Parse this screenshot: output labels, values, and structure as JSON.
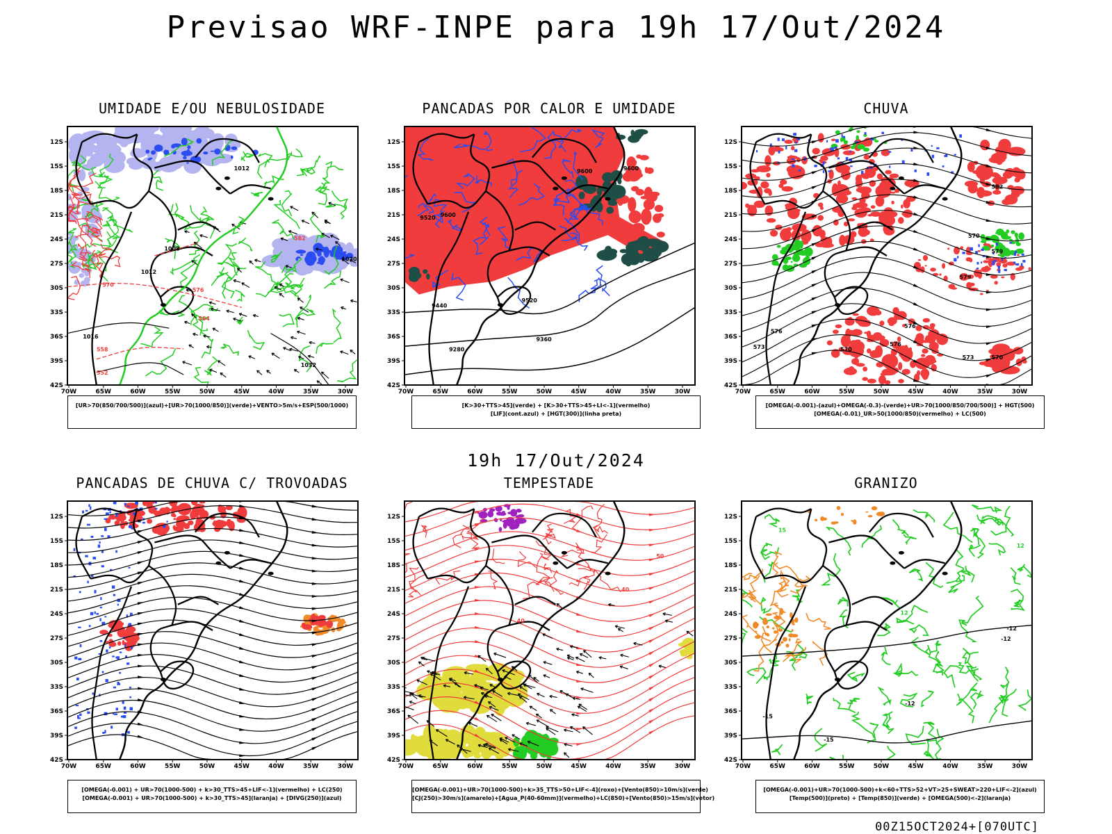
{
  "title": "Previsao WRF-INPE  para 19h 17/Out/2024",
  "mid_title": "19h 17/Out/2024",
  "footer": "00Z15OCT2024+[070UTC]",
  "axes": {
    "lat_labels": [
      "12S",
      "15S",
      "18S",
      "21S",
      "24S",
      "27S",
      "30S",
      "33S",
      "36S",
      "39S",
      "42S"
    ],
    "lon_labels": [
      "70W",
      "65W",
      "60W",
      "55W",
      "50W",
      "45W",
      "40W",
      "35W",
      "30W"
    ]
  },
  "colors": {
    "red": "#f03c3c",
    "green": "#22cc22",
    "blue": "#2a4cf0",
    "lavender": "#b4b4f0",
    "darkgreen": "#1e4e46",
    "yellow": "#e0dc3c",
    "orange": "#f08a28",
    "purple": "#a020c0",
    "black": "#000000"
  },
  "panels": [
    {
      "id": "umidade",
      "title": "UMIDADE E/OU NEBULOSIDADE",
      "legend": [
        "[UR>70(850/700/500)](azul)+[UR>70(1000/850)](verde)+VENTO>5m/s+ESP(500/1000)"
      ],
      "contour_labels": [
        "1008",
        "1012",
        "1016",
        "1020",
        "1032",
        "570",
        "576",
        "564",
        "582",
        "558",
        "552",
        "1012"
      ]
    },
    {
      "id": "pancadas",
      "title": "PANCADAS POR CALOR E UMIDADE",
      "legend": [
        "[K>30+TTS>45](verde) + [K>30+TTS>45+LI<-1](vermelho)",
        "[LIF](cont.azul) + [HGT(300)](linha preta)"
      ],
      "contour_labels": [
        "9600",
        "9520",
        "9440",
        "9360",
        "9280",
        "9600",
        "9520",
        "9600"
      ]
    },
    {
      "id": "chuva",
      "title": "CHUVA",
      "legend": [
        "[OMEGA(-0.001)-(azul)+OMEGA(-0.3)-(verde)+UR>70(1000/850/700/500)] + HGT(500)",
        "[OMEGA(-0.01)_UR>50(1000/850)(vermelho) + LC(500)"
      ],
      "contour_labels": [
        "582",
        "576",
        "570",
        "573",
        "576",
        "570",
        "579",
        "579",
        "576",
        "573",
        "570"
      ]
    },
    {
      "id": "trovoadas",
      "title": "PANCADAS DE CHUVA C/ TROVOADAS",
      "legend": [
        "[OMEGA(-0.001) + UR>70(1000-500) + k>30_TTS>45+LIF<-1](vermelho) + LC(250)",
        "[OMEGA(-0.001) + UR>70(1000-500) + k>30_TTS>45](laranja) + [DIVG(250)](azul)"
      ],
      "contour_labels": []
    },
    {
      "id": "tempestade",
      "title": "TEMPESTADE",
      "legend": [
        "[OMEGA(-0.001)+UR>70(1000-500)+k>35_TTS>50+LIF<-4](roxo)+[Vento(850)>10m/s](verde)",
        "[CJ(250)>30m/s](amarelo)+[Agua_P(40-60mm)](vermelho)+LC(850)+[Vento(850)>15m/s](vetor)"
      ],
      "contour_labels": [
        "40",
        "50",
        "40"
      ]
    },
    {
      "id": "granizo",
      "title": "GRANIZO",
      "legend": [
        "[OMEGA(-0.001)+UR>70(1000-500)+k<60+TTS>52+VT>25+SWEAT>220+LIF<-2](azul)",
        "[Temp(500)](preto) + [Temp(850)](verde) + [OMEGA(500)<-2](laranja)"
      ],
      "contour_labels": [
        "-12",
        "-12",
        "-12",
        "-15",
        "-15",
        "12",
        "15",
        "12"
      ]
    }
  ]
}
